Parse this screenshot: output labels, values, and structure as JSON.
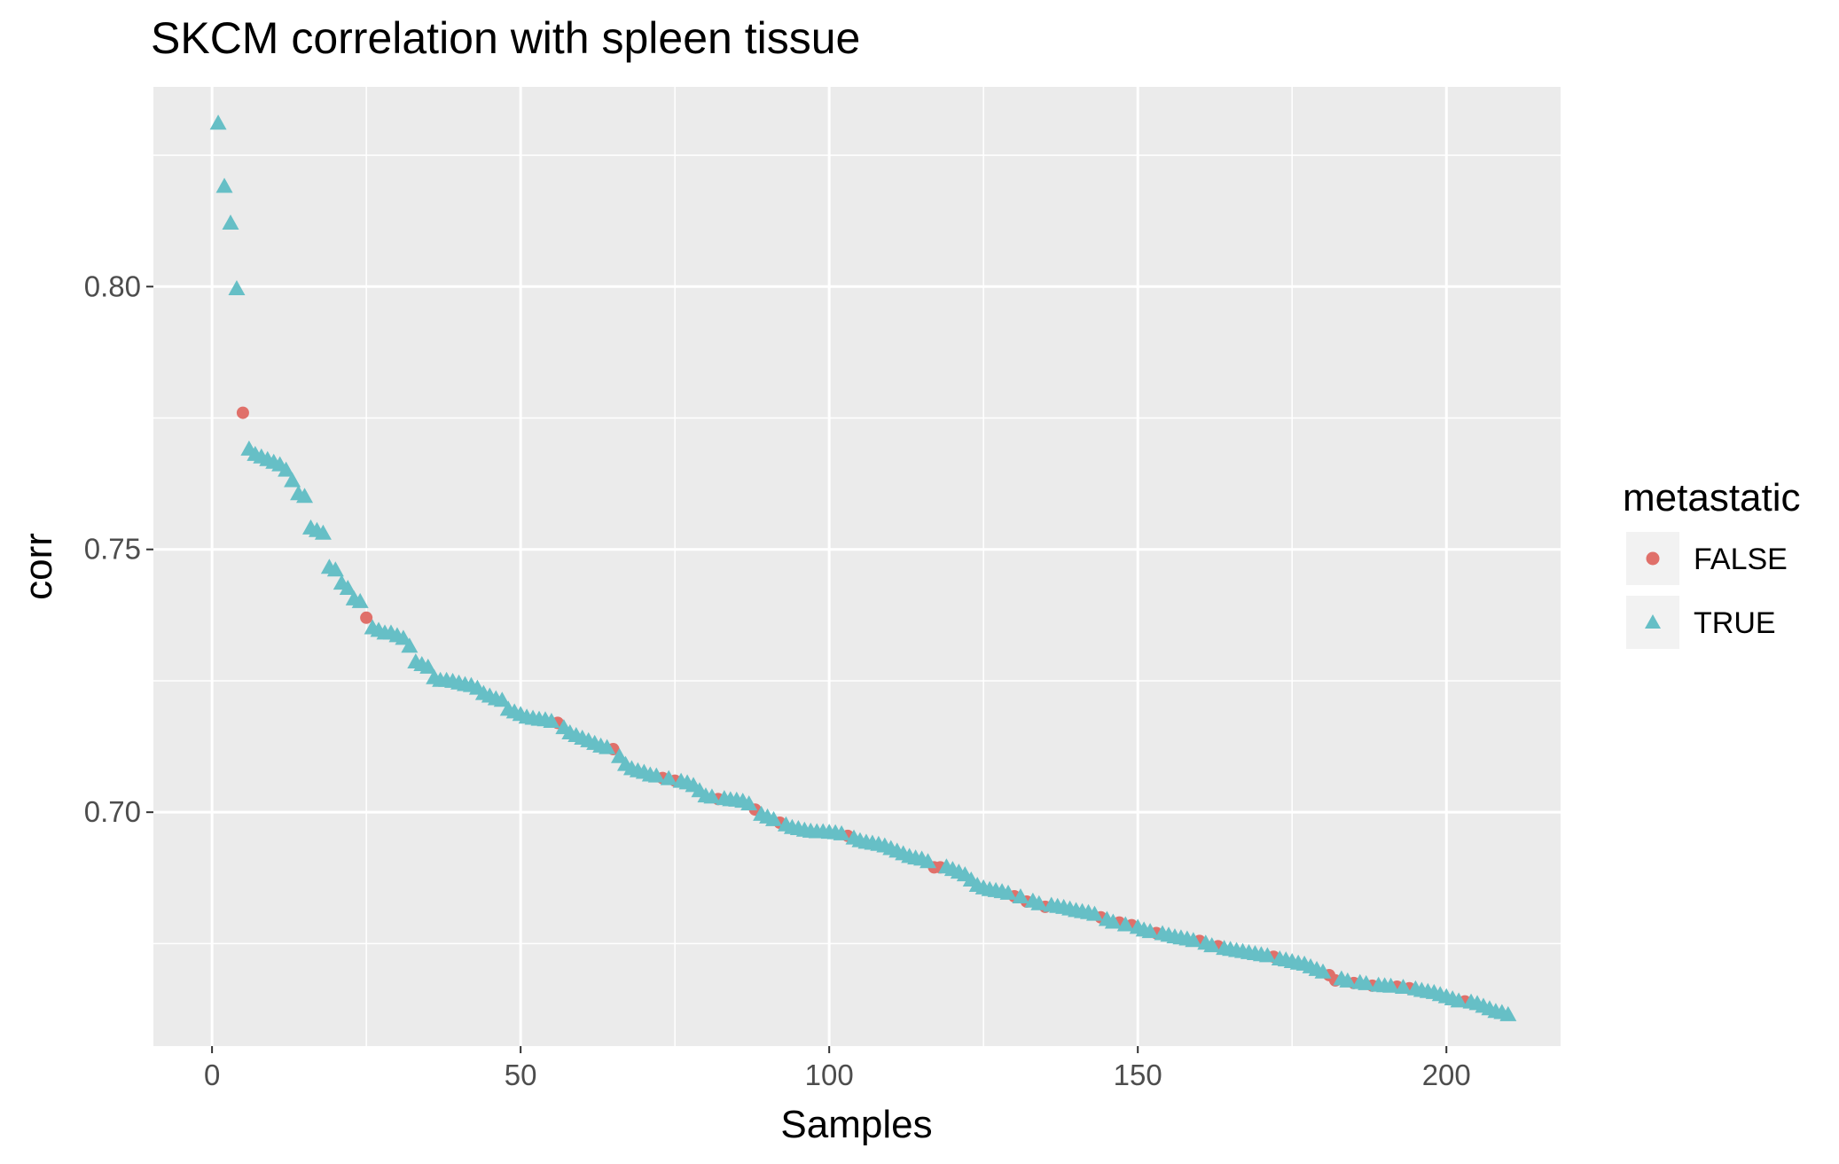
{
  "chart_data": {
    "type": "scatter",
    "title": "SKCM correlation with spleen tissue",
    "xlabel": "Samples",
    "ylabel": "corr",
    "xlim": [
      -9.5,
      218.5
    ],
    "ylim": [
      0.6555,
      0.838
    ],
    "x_ticks": [
      0,
      50,
      100,
      150,
      200
    ],
    "x_tick_labels": [
      "0",
      "50",
      "100",
      "150",
      "200"
    ],
    "y_ticks": [
      0.7,
      0.75,
      0.8
    ],
    "y_tick_labels": [
      "0.70",
      "0.75",
      "0.80"
    ],
    "grid": true,
    "background": "#ebebeb",
    "legend": {
      "title": "metastatic",
      "position": "right",
      "entries": [
        {
          "label": "FALSE",
          "shape": "circle",
          "color": "#f8766d"
        },
        {
          "label": "TRUE",
          "shape": "triangle",
          "color": "#00bfc4"
        }
      ]
    },
    "colors": {
      "FALSE": "#e0706a",
      "TRUE": "#66bfc6"
    },
    "series": [
      {
        "name": "FALSE",
        "shape": "circle",
        "x": [
          5,
          25,
          56,
          65,
          73,
          75,
          82,
          88,
          92,
          103,
          117,
          118,
          130,
          132,
          135,
          144,
          147,
          149,
          153,
          160,
          163,
          172,
          181,
          182,
          185,
          188,
          192,
          194,
          203
        ],
        "y": [
          0.776,
          0.737,
          0.717,
          0.712,
          0.7065,
          0.706,
          0.7025,
          0.7005,
          0.698,
          0.6955,
          0.6895,
          0.6895,
          0.684,
          0.683,
          0.682,
          0.68,
          0.679,
          0.6785,
          0.677,
          0.6755,
          0.6745,
          0.6725,
          0.669,
          0.668,
          0.6675,
          0.667,
          0.6668,
          0.6665,
          0.664
        ]
      },
      {
        "name": "TRUE",
        "shape": "triangle",
        "x": [
          1,
          2,
          3,
          4,
          6,
          7,
          8,
          9,
          10,
          11,
          12,
          13,
          14,
          15,
          16,
          17,
          18,
          19,
          20,
          21,
          22,
          23,
          24,
          26,
          27,
          28,
          29,
          30,
          31,
          32,
          33,
          34,
          35,
          36,
          37,
          38,
          39,
          40,
          41,
          42,
          43,
          44,
          45,
          46,
          47,
          48,
          49,
          50,
          51,
          52,
          53,
          54,
          55,
          57,
          58,
          59,
          60,
          61,
          62,
          63,
          64,
          66,
          67,
          68,
          69,
          70,
          71,
          72,
          74,
          76,
          77,
          78,
          79,
          80,
          81,
          83,
          84,
          85,
          86,
          87,
          89,
          90,
          91,
          93,
          94,
          95,
          96,
          97,
          98,
          99,
          100,
          101,
          102,
          104,
          105,
          106,
          107,
          108,
          109,
          110,
          111,
          112,
          113,
          114,
          115,
          116,
          119,
          120,
          121,
          122,
          123,
          124,
          125,
          126,
          127,
          128,
          129,
          131,
          133,
          134,
          136,
          137,
          138,
          139,
          140,
          141,
          142,
          143,
          145,
          146,
          148,
          150,
          151,
          152,
          154,
          155,
          156,
          157,
          158,
          159,
          161,
          162,
          164,
          165,
          166,
          167,
          168,
          169,
          170,
          171,
          173,
          174,
          175,
          176,
          177,
          178,
          179,
          180,
          183,
          184,
          186,
          187,
          189,
          190,
          191,
          193,
          195,
          196,
          197,
          198,
          199,
          200,
          201,
          202,
          204,
          205,
          206,
          207,
          208,
          209,
          210
        ],
        "y": [
          0.831,
          0.819,
          0.812,
          0.7995,
          0.769,
          0.768,
          0.7675,
          0.767,
          0.7665,
          0.766,
          0.765,
          0.763,
          0.7605,
          0.76,
          0.754,
          0.7535,
          0.753,
          0.7465,
          0.746,
          0.7435,
          0.7425,
          0.7405,
          0.74,
          0.735,
          0.7345,
          0.734,
          0.734,
          0.7335,
          0.733,
          0.7315,
          0.7285,
          0.728,
          0.7275,
          0.7255,
          0.725,
          0.725,
          0.7248,
          0.7245,
          0.7242,
          0.724,
          0.7235,
          0.7225,
          0.722,
          0.7215,
          0.7212,
          0.7195,
          0.719,
          0.7185,
          0.718,
          0.7178,
          0.7176,
          0.7175,
          0.7172,
          0.716,
          0.715,
          0.7145,
          0.714,
          0.7135,
          0.713,
          0.7125,
          0.7122,
          0.7105,
          0.709,
          0.7082,
          0.7078,
          0.7075,
          0.707,
          0.7068,
          0.7063,
          0.7058,
          0.7055,
          0.705,
          0.704,
          0.703,
          0.7028,
          0.7025,
          0.7023,
          0.7022,
          0.702,
          0.7015,
          0.6995,
          0.699,
          0.6985,
          0.6975,
          0.697,
          0.6968,
          0.6965,
          0.6963,
          0.6962,
          0.6962,
          0.6961,
          0.696,
          0.6958,
          0.695,
          0.6945,
          0.6942,
          0.694,
          0.6938,
          0.6935,
          0.693,
          0.6925,
          0.692,
          0.6915,
          0.6912,
          0.691,
          0.6905,
          0.6895,
          0.689,
          0.6885,
          0.688,
          0.687,
          0.686,
          0.6855,
          0.6852,
          0.685,
          0.6848,
          0.6845,
          0.6838,
          0.683,
          0.6825,
          0.6822,
          0.682,
          0.6818,
          0.6815,
          0.6812,
          0.681,
          0.6808,
          0.6805,
          0.6795,
          0.679,
          0.6785,
          0.678,
          0.6775,
          0.6772,
          0.6768,
          0.6765,
          0.6762,
          0.676,
          0.6758,
          0.6755,
          0.675,
          0.6745,
          0.674,
          0.6738,
          0.6736,
          0.6734,
          0.6732,
          0.673,
          0.6728,
          0.6726,
          0.672,
          0.6718,
          0.6715,
          0.6712,
          0.671,
          0.6705,
          0.67,
          0.6695,
          0.6682,
          0.6678,
          0.6675,
          0.6673,
          0.667,
          0.6669,
          0.6668,
          0.6666,
          0.6663,
          0.666,
          0.6658,
          0.6656,
          0.6652,
          0.6648,
          0.6644,
          0.664,
          0.6638,
          0.6635,
          0.663,
          0.6625,
          0.662,
          0.6618,
          0.6614
        ]
      }
    ]
  }
}
